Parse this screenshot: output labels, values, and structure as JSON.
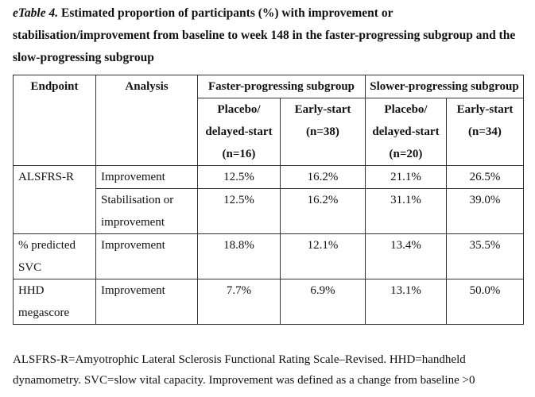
{
  "caption": {
    "lead": "eTable 4.",
    "text": "Estimated proportion of participants (%) with improvement or stabilisation/improvement from baseline to week 148 in the faster-progressing subgroup and the slow-progressing subgroup"
  },
  "table": {
    "headers": {
      "endpoint": "Endpoint",
      "analysis": "Analysis",
      "faster": "Faster-progressing subgroup",
      "slower": "Slower-progressing subgroup",
      "faster_placebo": "Placebo/ delayed-start (n=16)",
      "faster_early": "Early-start (n=38)",
      "slower_placebo": "Placebo/ delayed-start (n=20)",
      "slower_early": "Early-start (n=34)"
    },
    "rows": [
      {
        "endpoint": "ALSFRS-R",
        "analysis": "Improvement",
        "values": [
          "12.5%",
          "16.2%",
          "21.1%",
          "26.5%"
        ]
      },
      {
        "endpoint": "",
        "analysis": "Stabilisation or improvement",
        "values": [
          "12.5%",
          "16.2%",
          "31.1%",
          "39.0%"
        ]
      },
      {
        "endpoint": "% predicted SVC",
        "analysis": "Improvement",
        "values": [
          "18.8%",
          "12.1%",
          "13.4%",
          "35.5%"
        ]
      },
      {
        "endpoint": "HHD megascore",
        "analysis": "Improvement",
        "values": [
          "7.7%",
          "6.9%",
          "13.1%",
          "50.0%"
        ]
      }
    ]
  },
  "footnote": "ALSFRS-R=Amyotrophic Lateral Sclerosis Functional Rating Scale–Revised. HHD=handheld dynamometry. SVC=slow vital capacity. Improvement was defined as a change from baseline >0"
}
